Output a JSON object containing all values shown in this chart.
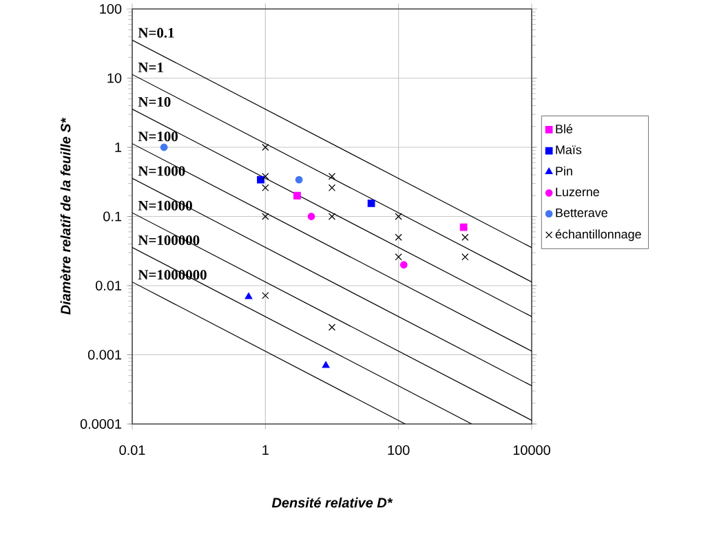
{
  "chart_data": {
    "type": "scatter",
    "xlabel": "Densité relative D*",
    "ylabel": "Diamètre relatif de la feuille S*",
    "log": "xy",
    "xlim": [
      0.01,
      10000
    ],
    "ylim": [
      0.0001,
      100
    ],
    "xticks": [
      0.01,
      1,
      100,
      10000
    ],
    "yticks": [
      0.0001,
      0.001,
      0.01,
      0.1,
      1,
      10,
      100
    ],
    "grid": true,
    "legend": "right",
    "series": [
      {
        "type": "line",
        "color": "#000000",
        "marker": "none",
        "x": [
          0.01,
          10000
        ],
        "values": [
          35.5,
          0.0355
        ]
      },
      {
        "type": "line",
        "color": "#000000",
        "marker": "none",
        "x": [
          0.01,
          10000
        ],
        "values": [
          11.3,
          0.0113
        ]
      },
      {
        "type": "line",
        "color": "#000000",
        "marker": "none",
        "x": [
          0.01,
          10000
        ],
        "values": [
          3.57,
          0.00357
        ]
      },
      {
        "type": "line",
        "color": "#000000",
        "marker": "none",
        "x": [
          0.01,
          10000
        ],
        "values": [
          1.13,
          0.00113
        ]
      },
      {
        "type": "line",
        "color": "#000000",
        "marker": "none",
        "x": [
          0.01,
          10000
        ],
        "values": [
          0.357,
          0.000357
        ]
      },
      {
        "type": "line",
        "color": "#000000",
        "marker": "none",
        "x": [
          0.01,
          10000
        ],
        "values": [
          0.113,
          0.000113
        ]
      },
      {
        "type": "line",
        "color": "#000000",
        "marker": "none",
        "x": [
          0.01,
          1260
        ],
        "values": [
          0.0357,
          0.0001
        ]
      },
      {
        "type": "line",
        "color": "#000000",
        "marker": "none",
        "x": [
          0.01,
          126
        ],
        "values": [
          0.0113,
          0.0001
        ]
      },
      {
        "name": "Blé",
        "color": "#ff00ff",
        "marker": "square",
        "x": [
          3.0,
          950
        ],
        "values": [
          0.2,
          0.07
        ]
      },
      {
        "name": "Maïs",
        "color": "#0000ff",
        "marker": "square",
        "x": [
          0.85,
          39
        ],
        "values": [
          0.34,
          0.155
        ]
      },
      {
        "name": "Pin",
        "color": "#0000ff",
        "marker": "triangle",
        "x": [
          0.56,
          8.1
        ],
        "values": [
          0.0069,
          0.0007
        ]
      },
      {
        "name": "Luzerne",
        "color": "#ff00ff",
        "marker": "circle",
        "x": [
          4.9,
          120
        ],
        "values": [
          0.1,
          0.02
        ]
      },
      {
        "name": "Betterave",
        "color": "#4477ee",
        "marker": "circle",
        "x": [
          0.03,
          3.2
        ],
        "values": [
          1.0,
          0.34
        ]
      },
      {
        "name": "échantillonnage",
        "color": "#000000",
        "marker": "cross",
        "x": [
          1,
          1,
          1,
          10,
          10,
          1,
          10,
          1,
          10,
          100,
          100,
          100,
          1000,
          1000
        ],
        "values": [
          1,
          0.38,
          0.26,
          0.38,
          0.26,
          0.1,
          0.1,
          0.0072,
          0.0025,
          0.1,
          0.05,
          0.026,
          0.05,
          0.026
        ]
      }
    ],
    "annotations": [
      "N=0.1",
      "N=1",
      "N=10",
      "N=100",
      "N=1000",
      "N=10000",
      "N=100000",
      "N=1000000"
    ]
  }
}
